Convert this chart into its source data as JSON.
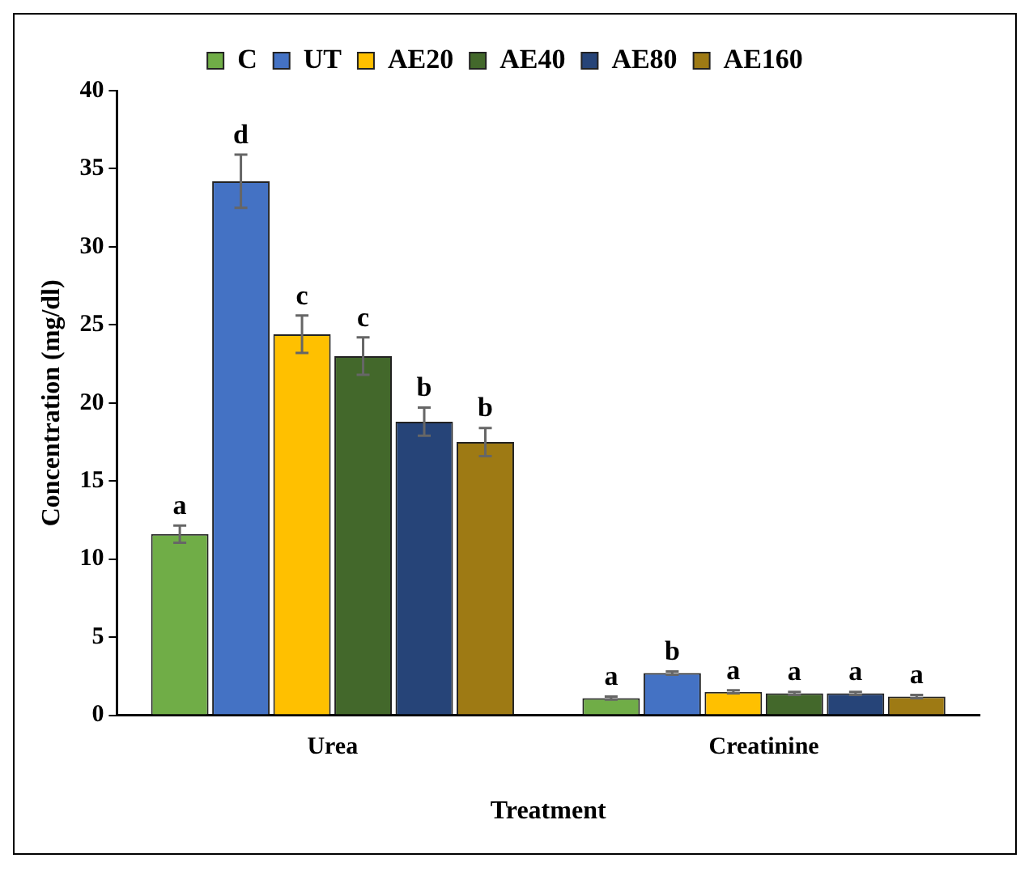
{
  "chart_data": {
    "type": "bar",
    "xlabel": "Treatment",
    "ylabel": "Concentration (mg/dl)",
    "categories": [
      "Urea",
      "Creatinine"
    ],
    "ylim": [
      0,
      40
    ],
    "yticks": [
      0,
      5,
      10,
      15,
      20,
      25,
      30,
      35,
      40
    ],
    "grid": false,
    "legend": "top",
    "series": [
      {
        "name": "C",
        "color": "#70ad47",
        "values": [
          11.6,
          1.1
        ],
        "errors": [
          0.55,
          0.1
        ],
        "value_labels": [
          "a",
          "a"
        ]
      },
      {
        "name": "UT",
        "color": "#4472c4",
        "values": [
          34.2,
          2.7
        ],
        "errors": [
          1.7,
          0.1
        ],
        "value_labels": [
          "d",
          "b"
        ]
      },
      {
        "name": "AE20",
        "color": "#ffc000",
        "values": [
          24.4,
          1.5
        ],
        "errors": [
          1.2,
          0.1
        ],
        "value_labels": [
          "c",
          "a"
        ]
      },
      {
        "name": "AE40",
        "color": "#43682b",
        "values": [
          23.0,
          1.4
        ],
        "errors": [
          1.2,
          0.1
        ],
        "value_labels": [
          "c",
          "a"
        ]
      },
      {
        "name": "AE80",
        "color": "#264478",
        "values": [
          18.8,
          1.4
        ],
        "errors": [
          0.9,
          0.1
        ],
        "value_labels": [
          "b",
          "a"
        ]
      },
      {
        "name": "AE160",
        "color": "#9e7a14",
        "values": [
          17.5,
          1.2
        ],
        "errors": [
          0.9,
          0.1
        ],
        "value_labels": [
          "b",
          "a"
        ]
      }
    ]
  }
}
